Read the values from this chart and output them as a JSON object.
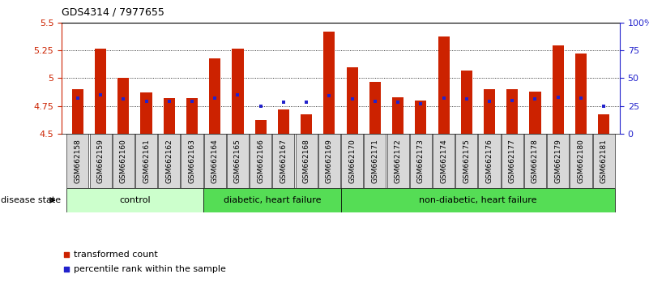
{
  "title": "GDS4314 / 7977655",
  "samples": [
    "GSM662158",
    "GSM662159",
    "GSM662160",
    "GSM662161",
    "GSM662162",
    "GSM662163",
    "GSM662164",
    "GSM662165",
    "GSM662166",
    "GSM662167",
    "GSM662168",
    "GSM662169",
    "GSM662170",
    "GSM662171",
    "GSM662172",
    "GSM662173",
    "GSM662174",
    "GSM662175",
    "GSM662176",
    "GSM662177",
    "GSM662178",
    "GSM662179",
    "GSM662180",
    "GSM662181"
  ],
  "bar_values": [
    4.9,
    5.27,
    5.0,
    4.87,
    4.82,
    4.82,
    5.18,
    5.27,
    4.62,
    4.72,
    4.67,
    5.42,
    5.1,
    4.97,
    4.83,
    4.8,
    5.38,
    5.07,
    4.9,
    4.9,
    4.88,
    5.3,
    5.22,
    4.67
  ],
  "blue_dot_values": [
    4.82,
    4.85,
    4.81,
    4.79,
    4.79,
    4.79,
    4.82,
    4.85,
    4.75,
    4.78,
    4.78,
    4.84,
    4.81,
    4.79,
    4.78,
    4.77,
    4.82,
    4.81,
    4.79,
    4.8,
    4.81,
    4.83,
    4.82,
    4.75
  ],
  "bar_color": "#cc2200",
  "dot_color": "#2222cc",
  "ylim_left": [
    4.5,
    5.5
  ],
  "ylim_right": [
    0,
    100
  ],
  "yticks_left": [
    4.5,
    4.75,
    5.0,
    5.25,
    5.5
  ],
  "ytick_labels_left": [
    "4.5",
    "4.75",
    "5",
    "5.25",
    "5.5"
  ],
  "yticks_right": [
    0,
    25,
    50,
    75,
    100
  ],
  "ytick_labels_right": [
    "0",
    "25",
    "50",
    "75",
    "100%"
  ],
  "gridlines": [
    4.75,
    5.0,
    5.25
  ],
  "groups": [
    {
      "label": "control",
      "start": 0,
      "end": 5,
      "color": "#ccffcc"
    },
    {
      "label": "diabetic, heart failure",
      "start": 6,
      "end": 11,
      "color": "#55dd55"
    },
    {
      "label": "non-diabetic, heart failure",
      "start": 12,
      "end": 23,
      "color": "#55dd55"
    }
  ],
  "legend_items": [
    {
      "label": "transformed count",
      "color": "#cc2200"
    },
    {
      "label": "percentile rank within the sample",
      "color": "#2222cc"
    }
  ],
  "disease_state_label": "disease state",
  "bar_width": 0.5,
  "background_color": "#ffffff",
  "tick_label_fontsize": 6.5,
  "axis_label_color_left": "#cc2200",
  "axis_label_color_right": "#2222cc",
  "xtick_bg_color": "#d8d8d8"
}
